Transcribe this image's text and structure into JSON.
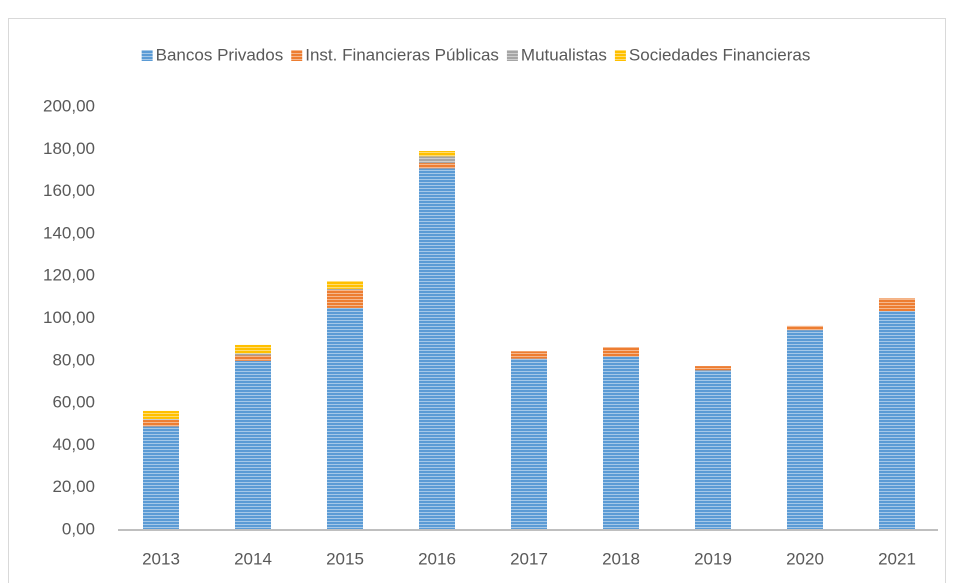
{
  "chart_data": {
    "type": "stacked_bar",
    "categories": [
      "2013",
      "2014",
      "2015",
      "2016",
      "2017",
      "2018",
      "2019",
      "2020",
      "2021"
    ],
    "series": [
      {
        "name": "Bancos Privados",
        "color": "#5b9bd5",
        "values": [
          49,
          80,
          105,
          171,
          81,
          82,
          75.5,
          94.5,
          103.5
        ]
      },
      {
        "name": "Inst. Financieras Públicas",
        "color": "#ed7d31",
        "values": [
          3,
          2.5,
          8.5,
          2.5,
          3.5,
          4.5,
          2,
          2,
          6
        ]
      },
      {
        "name": "Mutualistas",
        "color": "#a5a5a5",
        "values": [
          0.5,
          1,
          0.5,
          3.2,
          0,
          0,
          0,
          0,
          0
        ]
      },
      {
        "name": "Sociedades Financieras",
        "color": "#ffc000",
        "values": [
          3.8,
          4,
          3.7,
          2.5,
          0,
          0,
          0,
          0,
          0
        ]
      }
    ],
    "ylim": [
      0,
      200
    ],
    "yticks": [
      {
        "value": 0,
        "label": "0,00"
      },
      {
        "value": 20,
        "label": "20,00"
      },
      {
        "value": 40,
        "label": "40,00"
      },
      {
        "value": 60,
        "label": "60,00"
      },
      {
        "value": 80,
        "label": "80,00"
      },
      {
        "value": 100,
        "label": "100,00"
      },
      {
        "value": 120,
        "label": "120,00"
      },
      {
        "value": 140,
        "label": "140,00"
      },
      {
        "value": 160,
        "label": "160,00"
      },
      {
        "value": 180,
        "label": "180,00"
      },
      {
        "value": 200,
        "label": "200,00"
      }
    ],
    "legend": "top"
  }
}
